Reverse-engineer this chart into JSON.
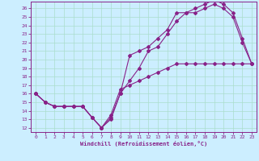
{
  "xlabel": "Windchill (Refroidissement éolien,°C)",
  "bg_color": "#cceeff",
  "line_color": "#882288",
  "grid_color": "#aaddcc",
  "xlim": [
    -0.5,
    23.5
  ],
  "ylim": [
    11.5,
    26.8
  ],
  "xticks": [
    0,
    1,
    2,
    3,
    4,
    5,
    6,
    7,
    8,
    9,
    10,
    11,
    12,
    13,
    14,
    15,
    16,
    17,
    18,
    19,
    20,
    21,
    22,
    23
  ],
  "yticks": [
    12,
    13,
    14,
    15,
    16,
    17,
    18,
    19,
    20,
    21,
    22,
    23,
    24,
    25,
    26
  ],
  "curve1_x": [
    0,
    1,
    2,
    3,
    4,
    5,
    6,
    7,
    8,
    9,
    10,
    11,
    12,
    13,
    14,
    15,
    16,
    17,
    18,
    19,
    20,
    21,
    22,
    23
  ],
  "curve1_y": [
    16,
    15,
    14.5,
    14.5,
    14.5,
    14.5,
    13.2,
    12.0,
    13.2,
    16.0,
    17.5,
    19.0,
    21.0,
    21.5,
    23.0,
    24.5,
    25.5,
    25.5,
    26.0,
    26.5,
    26.0,
    25.0,
    22.0,
    19.5
  ],
  "curve2_x": [
    0,
    1,
    2,
    3,
    4,
    5,
    6,
    7,
    8,
    9,
    10,
    11,
    12,
    13,
    14,
    15,
    16,
    17,
    18,
    19,
    20,
    21,
    22,
    23
  ],
  "curve2_y": [
    16,
    15,
    14.5,
    14.5,
    14.5,
    14.5,
    13.2,
    12.0,
    13.0,
    16.0,
    20.5,
    21.0,
    21.5,
    22.5,
    23.5,
    25.5,
    25.5,
    26.0,
    26.5,
    27.0,
    26.5,
    25.5,
    22.5,
    19.5
  ],
  "curve3_x": [
    0,
    1,
    2,
    3,
    4,
    5,
    6,
    7,
    8,
    9,
    10,
    11,
    12,
    13,
    14,
    15,
    16,
    17,
    18,
    19,
    20,
    21,
    22,
    23
  ],
  "curve3_y": [
    16,
    15,
    14.5,
    14.5,
    14.5,
    14.5,
    13.2,
    12.0,
    13.5,
    16.5,
    17.0,
    17.5,
    18.0,
    18.5,
    19.0,
    19.5,
    19.5,
    19.5,
    19.5,
    19.5,
    19.5,
    19.5,
    19.5,
    19.5
  ]
}
